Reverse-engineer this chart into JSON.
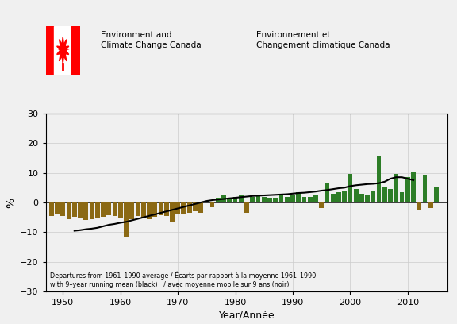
{
  "years": [
    1948,
    1949,
    1950,
    1951,
    1952,
    1953,
    1954,
    1955,
    1956,
    1957,
    1958,
    1959,
    1960,
    1961,
    1962,
    1963,
    1964,
    1965,
    1966,
    1967,
    1968,
    1969,
    1970,
    1971,
    1972,
    1973,
    1974,
    1975,
    1976,
    1977,
    1978,
    1979,
    1980,
    1981,
    1982,
    1983,
    1984,
    1985,
    1986,
    1987,
    1988,
    1989,
    1990,
    1991,
    1992,
    1993,
    1994,
    1995,
    1996,
    1997,
    1998,
    1999,
    2000,
    2001,
    2002,
    2003,
    2004,
    2005,
    2006,
    2007,
    2008,
    2009,
    2010,
    2011,
    2012,
    2013,
    2014,
    2015
  ],
  "values": [
    -4.5,
    -4.0,
    -4.5,
    -5.5,
    -4.8,
    -5.2,
    -5.8,
    -5.5,
    -5.0,
    -4.8,
    -4.2,
    -4.5,
    -5.0,
    -11.8,
    -5.5,
    -4.5,
    -5.0,
    -5.5,
    -4.8,
    -4.2,
    -4.5,
    -6.5,
    -3.8,
    -4.0,
    -3.5,
    -3.0,
    -3.5,
    0.5,
    -1.5,
    1.5,
    2.5,
    1.0,
    2.0,
    2.5,
    -3.5,
    2.0,
    2.5,
    2.0,
    1.5,
    1.5,
    2.5,
    2.0,
    2.5,
    3.5,
    2.0,
    2.0,
    2.5,
    -2.0,
    6.5,
    3.0,
    3.5,
    4.0,
    9.5,
    4.5,
    3.0,
    2.5,
    4.0,
    15.5,
    5.0,
    4.5,
    9.5,
    3.5,
    8.5,
    10.5,
    -2.5,
    9.0,
    -2.0,
    5.0
  ],
  "running_mean_years": [
    1952,
    1953,
    1954,
    1955,
    1956,
    1957,
    1958,
    1959,
    1960,
    1961,
    1962,
    1963,
    1964,
    1965,
    1966,
    1967,
    1968,
    1969,
    1970,
    1971,
    1972,
    1973,
    1974,
    1975,
    1976,
    1977,
    1978,
    1979,
    1980,
    1981,
    1982,
    1983,
    1984,
    1985,
    1986,
    1987,
    1988,
    1989,
    1990,
    1991,
    1992,
    1993,
    1994,
    1995,
    1996,
    1997,
    1998,
    1999,
    2000,
    2001,
    2002,
    2003,
    2004,
    2005,
    2006,
    2007,
    2008,
    2009,
    2010,
    2011
  ],
  "running_mean_values": [
    -9.5,
    -9.3,
    -9.0,
    -8.8,
    -8.5,
    -8.0,
    -7.5,
    -7.2,
    -6.8,
    -6.5,
    -6.0,
    -5.5,
    -5.0,
    -4.5,
    -4.0,
    -3.5,
    -3.0,
    -2.5,
    -2.0,
    -1.5,
    -1.0,
    -0.5,
    0.0,
    0.5,
    0.8,
    1.0,
    1.2,
    1.4,
    1.6,
    1.8,
    2.0,
    2.2,
    2.3,
    2.4,
    2.5,
    2.6,
    2.7,
    2.8,
    3.0,
    3.2,
    3.3,
    3.5,
    3.7,
    4.0,
    4.2,
    4.5,
    4.8,
    5.0,
    5.5,
    5.8,
    6.0,
    6.2,
    6.3,
    6.5,
    7.0,
    8.0,
    8.5,
    8.5,
    8.0,
    7.5
  ],
  "positive_color": "#2d7d27",
  "negative_color": "#8B6914",
  "running_mean_color": "#000000",
  "background_color": "#f0f0f0",
  "grid_color": "#cccccc",
  "ylim": [
    -30,
    30
  ],
  "xlim": [
    1947,
    2017
  ],
  "yticks": [
    -30,
    -20,
    -10,
    0,
    10,
    20,
    30
  ],
  "xticks": [
    1950,
    1960,
    1970,
    1980,
    1990,
    2000,
    2010
  ],
  "ylabel": "%",
  "xlabel": "Year/Année",
  "annotation": "Departures from 1961–1990 average / Écarts par rapport à la moyenne 1961–1990\nwith 9–year running mean (black)   / avec moyenne mobile sur 9 ans (noir)",
  "logo_text_en": "Environment and\nClimate Change Canada",
  "logo_text_fr": "Environnement et\nChangement climatique Canada"
}
